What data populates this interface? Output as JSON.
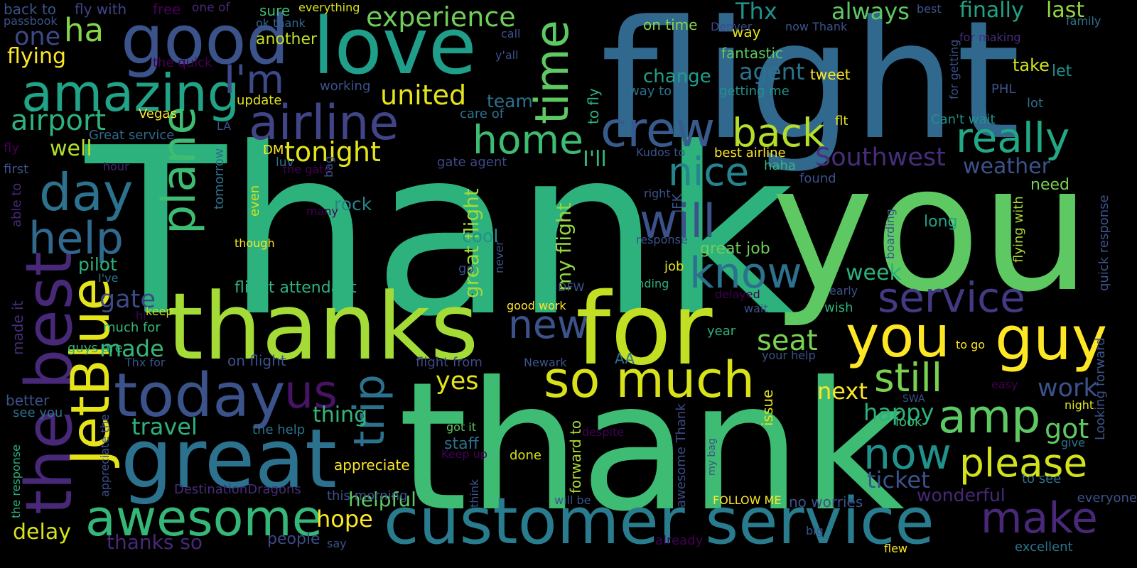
{
  "palette": {
    "background": "#000000",
    "dark_purple": "#440154",
    "indigo": "#472d7b",
    "slate_blue": "#3b528b",
    "steel_blue": "#2c728e",
    "teal": "#21918c",
    "sea_green": "#28ae80",
    "green": "#5ec962",
    "lime": "#addc30",
    "yellow": "#fde725"
  },
  "words": [
    {
      "text": "Thank",
      "color": "#2db27d"
    },
    {
      "text": "you",
      "color": "#5ec962"
    },
    {
      "text": "flight",
      "color": "#31688e"
    },
    {
      "text": "thank",
      "color": "#3fbc73"
    },
    {
      "text": "thanks",
      "color": "#a5db36"
    },
    {
      "text": "for",
      "color": "#c2df23"
    },
    {
      "text": "great",
      "color": "#2c728e"
    },
    {
      "text": "love",
      "color": "#1f9e89"
    },
    {
      "text": "good",
      "color": "#3b528b"
    },
    {
      "text": "customer service",
      "color": "#287c8e"
    },
    {
      "text": "today",
      "color": "#3b528b"
    },
    {
      "text": "amazing",
      "color": "#20a386"
    },
    {
      "text": "airline",
      "color": "#414487"
    },
    {
      "text": "crew",
      "color": "#375b8d"
    },
    {
      "text": "so much",
      "color": "#d8e219"
    },
    {
      "text": "guy",
      "color": "#fde725"
    },
    {
      "text": "you",
      "color": "#fde725"
    },
    {
      "text": "awesome",
      "color": "#35b779"
    },
    {
      "text": "the best",
      "color": "#482878"
    },
    {
      "text": "JetBlue",
      "color": "#e5e419"
    },
    {
      "text": "day",
      "color": "#2c728e"
    },
    {
      "text": "help",
      "color": "#31688e"
    },
    {
      "text": "I'm",
      "color": "#3e4989"
    },
    {
      "text": "time",
      "color": "#5ec962"
    },
    {
      "text": "will",
      "color": "#3b528b"
    },
    {
      "text": "know",
      "color": "#2c728e"
    },
    {
      "text": "really",
      "color": "#22a884"
    },
    {
      "text": "service",
      "color": "#443983"
    },
    {
      "text": "nice",
      "color": "#25858e"
    },
    {
      "text": "back",
      "color": "#b5de2b"
    },
    {
      "text": "home",
      "color": "#3fbc73"
    },
    {
      "text": "still",
      "color": "#7ad151"
    },
    {
      "text": "amp",
      "color": "#5ec962"
    },
    {
      "text": "now",
      "color": "#21918c"
    },
    {
      "text": "please",
      "color": "#d2e21b"
    },
    {
      "text": "make",
      "color": "#482878"
    },
    {
      "text": "us",
      "color": "#471365"
    },
    {
      "text": "plane",
      "color": "#3fbc73"
    },
    {
      "text": "trip",
      "color": "#2c728e"
    },
    {
      "text": "new",
      "color": "#3b528b"
    },
    {
      "text": "airport",
      "color": "#2db27d"
    },
    {
      "text": "ha",
      "color": "#86d549"
    },
    {
      "text": "united",
      "color": "#e5e419"
    },
    {
      "text": "experience",
      "color": "#6ece58"
    },
    {
      "text": "Thx",
      "color": "#21918c"
    },
    {
      "text": "always",
      "color": "#5ec962"
    },
    {
      "text": "finally",
      "color": "#20a386"
    },
    {
      "text": "last",
      "color": "#93d741"
    },
    {
      "text": "tonight",
      "color": "#e5e419"
    },
    {
      "text": "Southwest",
      "color": "#472d7b"
    },
    {
      "text": "weather",
      "color": "#3b528b"
    },
    {
      "text": "flying",
      "color": "#fde725"
    },
    {
      "text": "one",
      "color": "#3e4989"
    },
    {
      "text": "well",
      "color": "#b5de2b"
    },
    {
      "text": "seat",
      "color": "#7ad151"
    },
    {
      "text": "next",
      "color": "#fde725"
    },
    {
      "text": "got",
      "color": "#5ec962"
    },
    {
      "text": "work",
      "color": "#3b528b"
    },
    {
      "text": "happy",
      "color": "#2db27d"
    },
    {
      "text": "ticket",
      "color": "#3b528b"
    },
    {
      "text": "hope",
      "color": "#fde725"
    },
    {
      "text": "yes",
      "color": "#e5e419"
    },
    {
      "text": "travel",
      "color": "#2db27d"
    },
    {
      "text": "thing",
      "color": "#35b779"
    },
    {
      "text": "gate",
      "color": "#3e4989"
    },
    {
      "text": "made",
      "color": "#35b779"
    },
    {
      "text": "delay",
      "color": "#d8e219"
    },
    {
      "text": "week",
      "color": "#2db27d"
    },
    {
      "text": "I'll",
      "color": "#35b779"
    },
    {
      "text": "my flight",
      "color": "#93d741"
    },
    {
      "text": "great flight",
      "color": "#a0da39"
    },
    {
      "text": "agent",
      "color": "#2c728e"
    },
    {
      "text": "change",
      "color": "#1f9e89"
    },
    {
      "text": "team",
      "color": "#2c728e"
    },
    {
      "text": "pilot",
      "color": "#2db27d"
    },
    {
      "text": "rock",
      "color": "#25858e"
    },
    {
      "text": "cool",
      "color": "#21918c"
    },
    {
      "text": "helpful",
      "color": "#5ec962"
    },
    {
      "text": "appreciate",
      "color": "#fde725"
    },
    {
      "text": "staff",
      "color": "#2c728e"
    },
    {
      "text": "wonderful",
      "color": "#482878"
    },
    {
      "text": "flight attendant",
      "color": "#2db27d"
    },
    {
      "text": "great job",
      "color": "#6ece58"
    },
    {
      "text": "long",
      "color": "#20a386"
    },
    {
      "text": "need",
      "color": "#7ad151"
    },
    {
      "text": "take",
      "color": "#d2e21b"
    },
    {
      "text": "let",
      "color": "#21918c"
    },
    {
      "text": "tweet",
      "color": "#fde725"
    },
    {
      "text": "fantastic",
      "color": "#5ec962"
    },
    {
      "text": "way",
      "color": "#e5e419"
    },
    {
      "text": "on time",
      "color": "#86d549"
    },
    {
      "text": "sure",
      "color": "#3fbc73"
    },
    {
      "text": "another",
      "color": "#c2df23"
    },
    {
      "text": "everything",
      "color": "#d8e219"
    },
    {
      "text": "fly with",
      "color": "#414487"
    },
    {
      "text": "back to",
      "color": "#3b528b"
    },
    {
      "text": "free",
      "color": "#440154"
    },
    {
      "text": "one of",
      "color": "#482878"
    },
    {
      "text": "passbook",
      "color": "#3b528b"
    },
    {
      "text": "ok thank",
      "color": "#31688e"
    },
    {
      "text": "Denver",
      "color": "#3e4989"
    },
    {
      "text": "call",
      "color": "#3b528b"
    },
    {
      "text": "best",
      "color": "#3b528b"
    },
    {
      "text": "now Thank",
      "color": "#3b528b"
    },
    {
      "text": "family",
      "color": "#2c728e"
    },
    {
      "text": "for making",
      "color": "#472d7b"
    },
    {
      "text": "for getting",
      "color": "#3b528b"
    },
    {
      "text": "Can't wait",
      "color": "#21918c"
    },
    {
      "text": "PHL",
      "color": "#3b528b"
    },
    {
      "text": "lot",
      "color": "#2c728e"
    },
    {
      "text": "update",
      "color": "#e5e419"
    },
    {
      "text": "y'all",
      "color": "#3b528b"
    },
    {
      "text": "the quick",
      "color": "#440154"
    },
    {
      "text": "working",
      "color": "#3b528b"
    },
    {
      "text": "care of",
      "color": "#2c728e"
    },
    {
      "text": "Vegas",
      "color": "#fde725"
    },
    {
      "text": "Great service",
      "color": "#31688e"
    },
    {
      "text": "LA",
      "color": "#3b528b"
    },
    {
      "text": "to fly",
      "color": "#2db27d"
    },
    {
      "text": "way to",
      "color": "#2c728e"
    },
    {
      "text": "getting me",
      "color": "#21918c"
    },
    {
      "text": "JFK",
      "color": "#3b528b"
    },
    {
      "text": "flt",
      "color": "#e5e419"
    },
    {
      "text": "Kudos to",
      "color": "#3b528b"
    },
    {
      "text": "best airline",
      "color": "#fde725"
    },
    {
      "text": "haha",
      "color": "#35b779"
    },
    {
      "text": "found",
      "color": "#3b528b"
    },
    {
      "text": "fly",
      "color": "#440154"
    },
    {
      "text": "first",
      "color": "#3b528b"
    },
    {
      "text": "hour",
      "color": "#482878"
    },
    {
      "text": "DM",
      "color": "#fde725"
    },
    {
      "text": "luv",
      "color": "#2c728e"
    },
    {
      "text": "the gate",
      "color": "#440154"
    },
    {
      "text": "gate agent",
      "color": "#3e4989"
    },
    {
      "text": "tomorrow",
      "color": "#2c728e"
    },
    {
      "text": "bag",
      "color": "#3b528b"
    },
    {
      "text": "even",
      "color": "#d2e21b"
    },
    {
      "text": "many",
      "color": "#440154"
    },
    {
      "text": "though",
      "color": "#fde725"
    },
    {
      "text": "right",
      "color": "#3b528b"
    },
    {
      "text": "response",
      "color": "#3b528b"
    },
    {
      "text": "boarding",
      "color": "#3b528b"
    },
    {
      "text": "flying with",
      "color": "#addc30"
    },
    {
      "text": "quick response",
      "color": "#3b528b"
    },
    {
      "text": "able to",
      "color": "#482878"
    },
    {
      "text": "made it",
      "color": "#472d7b"
    },
    {
      "text": "I've",
      "color": "#2c728e"
    },
    {
      "text": "hi",
      "color": "#440154"
    },
    {
      "text": "keep",
      "color": "#c2df23"
    },
    {
      "text": "much for",
      "color": "#35b779"
    },
    {
      "text": "go",
      "color": "#3e4989"
    },
    {
      "text": "never",
      "color": "#3b528b"
    },
    {
      "text": "DFW",
      "color": "#3b528b"
    },
    {
      "text": "landing",
      "color": "#2db27d"
    },
    {
      "text": "job",
      "color": "#e5e419"
    },
    {
      "text": "good work",
      "color": "#fde725"
    },
    {
      "text": "delayed",
      "color": "#440154"
    },
    {
      "text": "wait",
      "color": "#3b528b"
    },
    {
      "text": "wish",
      "color": "#2db27d"
    },
    {
      "text": "early",
      "color": "#3b528b"
    },
    {
      "text": "Thx for",
      "color": "#3b528b"
    },
    {
      "text": "guys are",
      "color": "#2db27d"
    },
    {
      "text": "AA",
      "color": "#2c728e"
    },
    {
      "text": "year",
      "color": "#2db27d"
    },
    {
      "text": "your help",
      "color": "#3b528b"
    },
    {
      "text": "to go",
      "color": "#fde725"
    },
    {
      "text": "on flight",
      "color": "#3b528b"
    },
    {
      "text": "flight from",
      "color": "#3e4989"
    },
    {
      "text": "Newark",
      "color": "#3b528b"
    },
    {
      "text": "better",
      "color": "#3b528b"
    },
    {
      "text": "see you",
      "color": "#2c728e"
    },
    {
      "text": "appreciate the",
      "color": "#3b528b"
    },
    {
      "text": "the response",
      "color": "#2db27d"
    },
    {
      "text": "the help",
      "color": "#2c728e"
    },
    {
      "text": "got it",
      "color": "#5ec962"
    },
    {
      "text": "despite",
      "color": "#440154"
    },
    {
      "text": "forward to",
      "color": "#addc30"
    },
    {
      "text": "awesome Thank",
      "color": "#3e4989"
    },
    {
      "text": "issue",
      "color": "#e5e419"
    },
    {
      "text": "easy",
      "color": "#440154"
    },
    {
      "text": "SWA",
      "color": "#3b528b"
    },
    {
      "text": "look",
      "color": "#3fbc73"
    },
    {
      "text": "night",
      "color": "#e5e419"
    },
    {
      "text": "give",
      "color": "#2c728e"
    },
    {
      "text": "Looking forward",
      "color": "#3b528b"
    },
    {
      "text": "Keep up",
      "color": "#440154"
    },
    {
      "text": "done",
      "color": "#d2e21b"
    },
    {
      "text": "think",
      "color": "#3b528b"
    },
    {
      "text": "my bag",
      "color": "#3b528b"
    },
    {
      "text": "DestinationDragons",
      "color": "#472d7b"
    },
    {
      "text": "this morning",
      "color": "#3b528b"
    },
    {
      "text": "FOLLOW ME",
      "color": "#fde725"
    },
    {
      "text": "no worries",
      "color": "#3b528b"
    },
    {
      "text": "to see",
      "color": "#2c728e"
    },
    {
      "text": "everyone",
      "color": "#3b528b"
    },
    {
      "text": "will be",
      "color": "#3b528b"
    },
    {
      "text": "thanks so",
      "color": "#482878"
    },
    {
      "text": "people",
      "color": "#3e4989"
    },
    {
      "text": "say",
      "color": "#3b528b"
    },
    {
      "text": "already",
      "color": "#440154"
    },
    {
      "text": "big",
      "color": "#3b528b"
    },
    {
      "text": "flew",
      "color": "#fde725"
    },
    {
      "text": "excellent",
      "color": "#2c728e"
    }
  ]
}
